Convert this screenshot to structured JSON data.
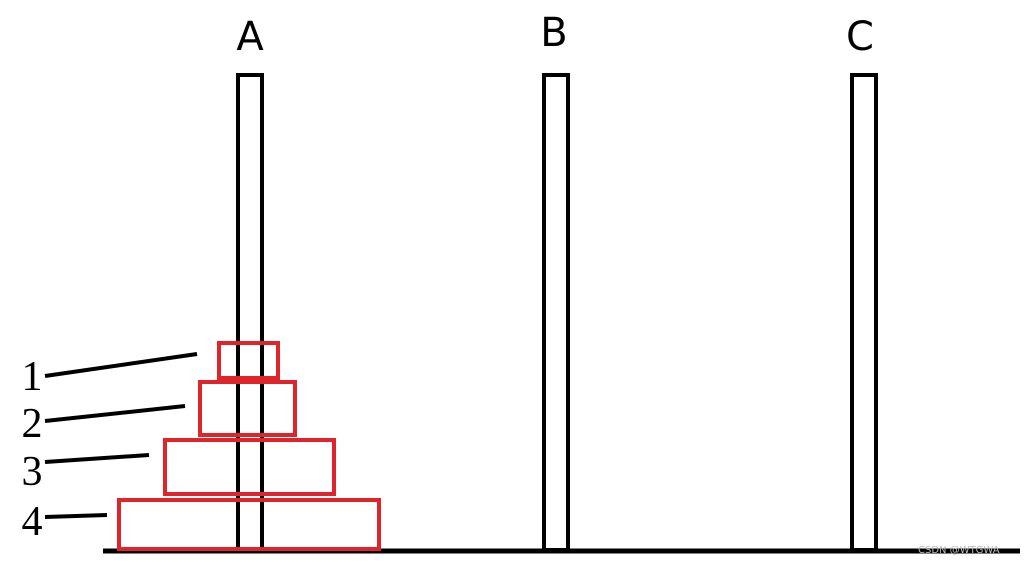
{
  "pegs": [
    {
      "label": "A"
    },
    {
      "label": "B"
    },
    {
      "label": "C"
    }
  ],
  "disks": [
    {
      "label": "1"
    },
    {
      "label": "2"
    },
    {
      "label": "3"
    },
    {
      "label": "4"
    }
  ],
  "watermark": "CSDN @WTGWA"
}
